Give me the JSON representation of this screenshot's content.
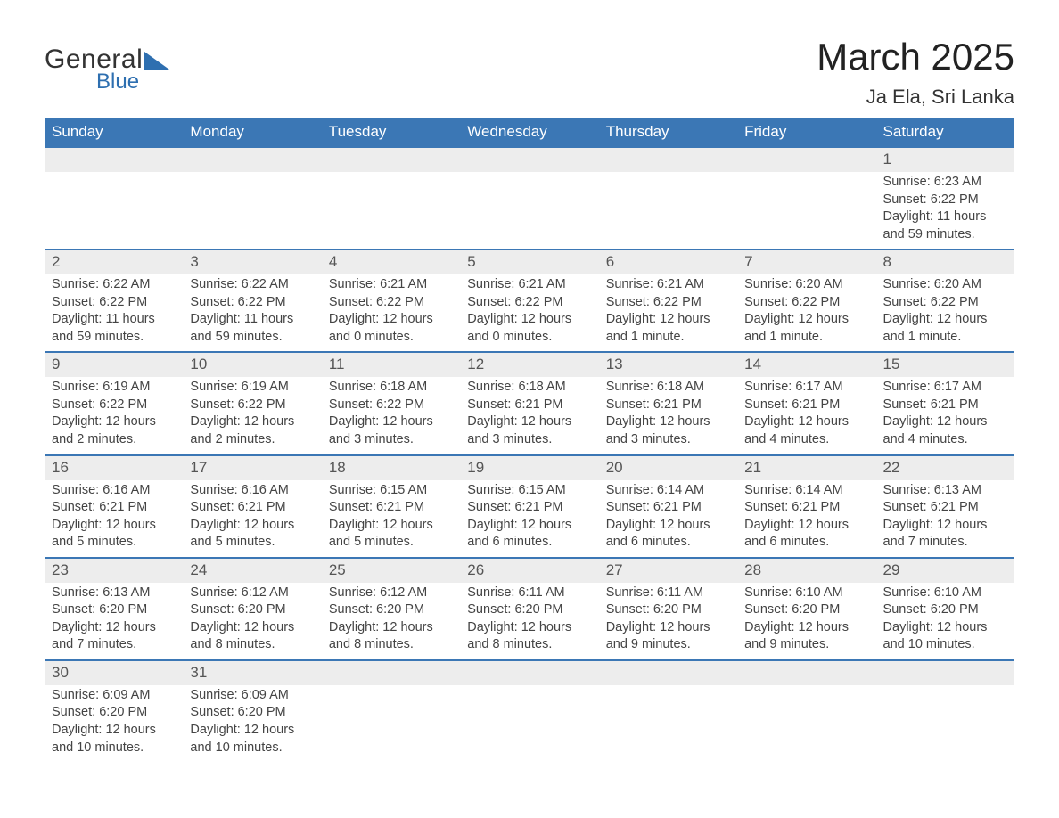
{
  "brand": {
    "general": "General",
    "blue": "Blue"
  },
  "title": "March 2025",
  "location": "Ja Ela, Sri Lanka",
  "colors": {
    "header_bg": "#3b77b5",
    "header_text": "#ffffff",
    "row_sep": "#3b77b5",
    "daynum_bg": "#ededed",
    "text": "#444444",
    "brand_blue": "#2e6fb0"
  },
  "fonts": {
    "title_pt": 42,
    "location_pt": 22,
    "th_pt": 17,
    "cell_pt": 14.5
  },
  "weekdays": [
    "Sunday",
    "Monday",
    "Tuesday",
    "Wednesday",
    "Thursday",
    "Friday",
    "Saturday"
  ],
  "weeks": [
    [
      null,
      null,
      null,
      null,
      null,
      null,
      {
        "n": "1",
        "sr": "Sunrise: 6:23 AM",
        "ss": "Sunset: 6:22 PM",
        "dl": "Daylight: 11 hours and 59 minutes."
      }
    ],
    [
      {
        "n": "2",
        "sr": "Sunrise: 6:22 AM",
        "ss": "Sunset: 6:22 PM",
        "dl": "Daylight: 11 hours and 59 minutes."
      },
      {
        "n": "3",
        "sr": "Sunrise: 6:22 AM",
        "ss": "Sunset: 6:22 PM",
        "dl": "Daylight: 11 hours and 59 minutes."
      },
      {
        "n": "4",
        "sr": "Sunrise: 6:21 AM",
        "ss": "Sunset: 6:22 PM",
        "dl": "Daylight: 12 hours and 0 minutes."
      },
      {
        "n": "5",
        "sr": "Sunrise: 6:21 AM",
        "ss": "Sunset: 6:22 PM",
        "dl": "Daylight: 12 hours and 0 minutes."
      },
      {
        "n": "6",
        "sr": "Sunrise: 6:21 AM",
        "ss": "Sunset: 6:22 PM",
        "dl": "Daylight: 12 hours and 1 minute."
      },
      {
        "n": "7",
        "sr": "Sunrise: 6:20 AM",
        "ss": "Sunset: 6:22 PM",
        "dl": "Daylight: 12 hours and 1 minute."
      },
      {
        "n": "8",
        "sr": "Sunrise: 6:20 AM",
        "ss": "Sunset: 6:22 PM",
        "dl": "Daylight: 12 hours and 1 minute."
      }
    ],
    [
      {
        "n": "9",
        "sr": "Sunrise: 6:19 AM",
        "ss": "Sunset: 6:22 PM",
        "dl": "Daylight: 12 hours and 2 minutes."
      },
      {
        "n": "10",
        "sr": "Sunrise: 6:19 AM",
        "ss": "Sunset: 6:22 PM",
        "dl": "Daylight: 12 hours and 2 minutes."
      },
      {
        "n": "11",
        "sr": "Sunrise: 6:18 AM",
        "ss": "Sunset: 6:22 PM",
        "dl": "Daylight: 12 hours and 3 minutes."
      },
      {
        "n": "12",
        "sr": "Sunrise: 6:18 AM",
        "ss": "Sunset: 6:21 PM",
        "dl": "Daylight: 12 hours and 3 minutes."
      },
      {
        "n": "13",
        "sr": "Sunrise: 6:18 AM",
        "ss": "Sunset: 6:21 PM",
        "dl": "Daylight: 12 hours and 3 minutes."
      },
      {
        "n": "14",
        "sr": "Sunrise: 6:17 AM",
        "ss": "Sunset: 6:21 PM",
        "dl": "Daylight: 12 hours and 4 minutes."
      },
      {
        "n": "15",
        "sr": "Sunrise: 6:17 AM",
        "ss": "Sunset: 6:21 PM",
        "dl": "Daylight: 12 hours and 4 minutes."
      }
    ],
    [
      {
        "n": "16",
        "sr": "Sunrise: 6:16 AM",
        "ss": "Sunset: 6:21 PM",
        "dl": "Daylight: 12 hours and 5 minutes."
      },
      {
        "n": "17",
        "sr": "Sunrise: 6:16 AM",
        "ss": "Sunset: 6:21 PM",
        "dl": "Daylight: 12 hours and 5 minutes."
      },
      {
        "n": "18",
        "sr": "Sunrise: 6:15 AM",
        "ss": "Sunset: 6:21 PM",
        "dl": "Daylight: 12 hours and 5 minutes."
      },
      {
        "n": "19",
        "sr": "Sunrise: 6:15 AM",
        "ss": "Sunset: 6:21 PM",
        "dl": "Daylight: 12 hours and 6 minutes."
      },
      {
        "n": "20",
        "sr": "Sunrise: 6:14 AM",
        "ss": "Sunset: 6:21 PM",
        "dl": "Daylight: 12 hours and 6 minutes."
      },
      {
        "n": "21",
        "sr": "Sunrise: 6:14 AM",
        "ss": "Sunset: 6:21 PM",
        "dl": "Daylight: 12 hours and 6 minutes."
      },
      {
        "n": "22",
        "sr": "Sunrise: 6:13 AM",
        "ss": "Sunset: 6:21 PM",
        "dl": "Daylight: 12 hours and 7 minutes."
      }
    ],
    [
      {
        "n": "23",
        "sr": "Sunrise: 6:13 AM",
        "ss": "Sunset: 6:20 PM",
        "dl": "Daylight: 12 hours and 7 minutes."
      },
      {
        "n": "24",
        "sr": "Sunrise: 6:12 AM",
        "ss": "Sunset: 6:20 PM",
        "dl": "Daylight: 12 hours and 8 minutes."
      },
      {
        "n": "25",
        "sr": "Sunrise: 6:12 AM",
        "ss": "Sunset: 6:20 PM",
        "dl": "Daylight: 12 hours and 8 minutes."
      },
      {
        "n": "26",
        "sr": "Sunrise: 6:11 AM",
        "ss": "Sunset: 6:20 PM",
        "dl": "Daylight: 12 hours and 8 minutes."
      },
      {
        "n": "27",
        "sr": "Sunrise: 6:11 AM",
        "ss": "Sunset: 6:20 PM",
        "dl": "Daylight: 12 hours and 9 minutes."
      },
      {
        "n": "28",
        "sr": "Sunrise: 6:10 AM",
        "ss": "Sunset: 6:20 PM",
        "dl": "Daylight: 12 hours and 9 minutes."
      },
      {
        "n": "29",
        "sr": "Sunrise: 6:10 AM",
        "ss": "Sunset: 6:20 PM",
        "dl": "Daylight: 12 hours and 10 minutes."
      }
    ],
    [
      {
        "n": "30",
        "sr": "Sunrise: 6:09 AM",
        "ss": "Sunset: 6:20 PM",
        "dl": "Daylight: 12 hours and 10 minutes."
      },
      {
        "n": "31",
        "sr": "Sunrise: 6:09 AM",
        "ss": "Sunset: 6:20 PM",
        "dl": "Daylight: 12 hours and 10 minutes."
      },
      null,
      null,
      null,
      null,
      null
    ]
  ]
}
